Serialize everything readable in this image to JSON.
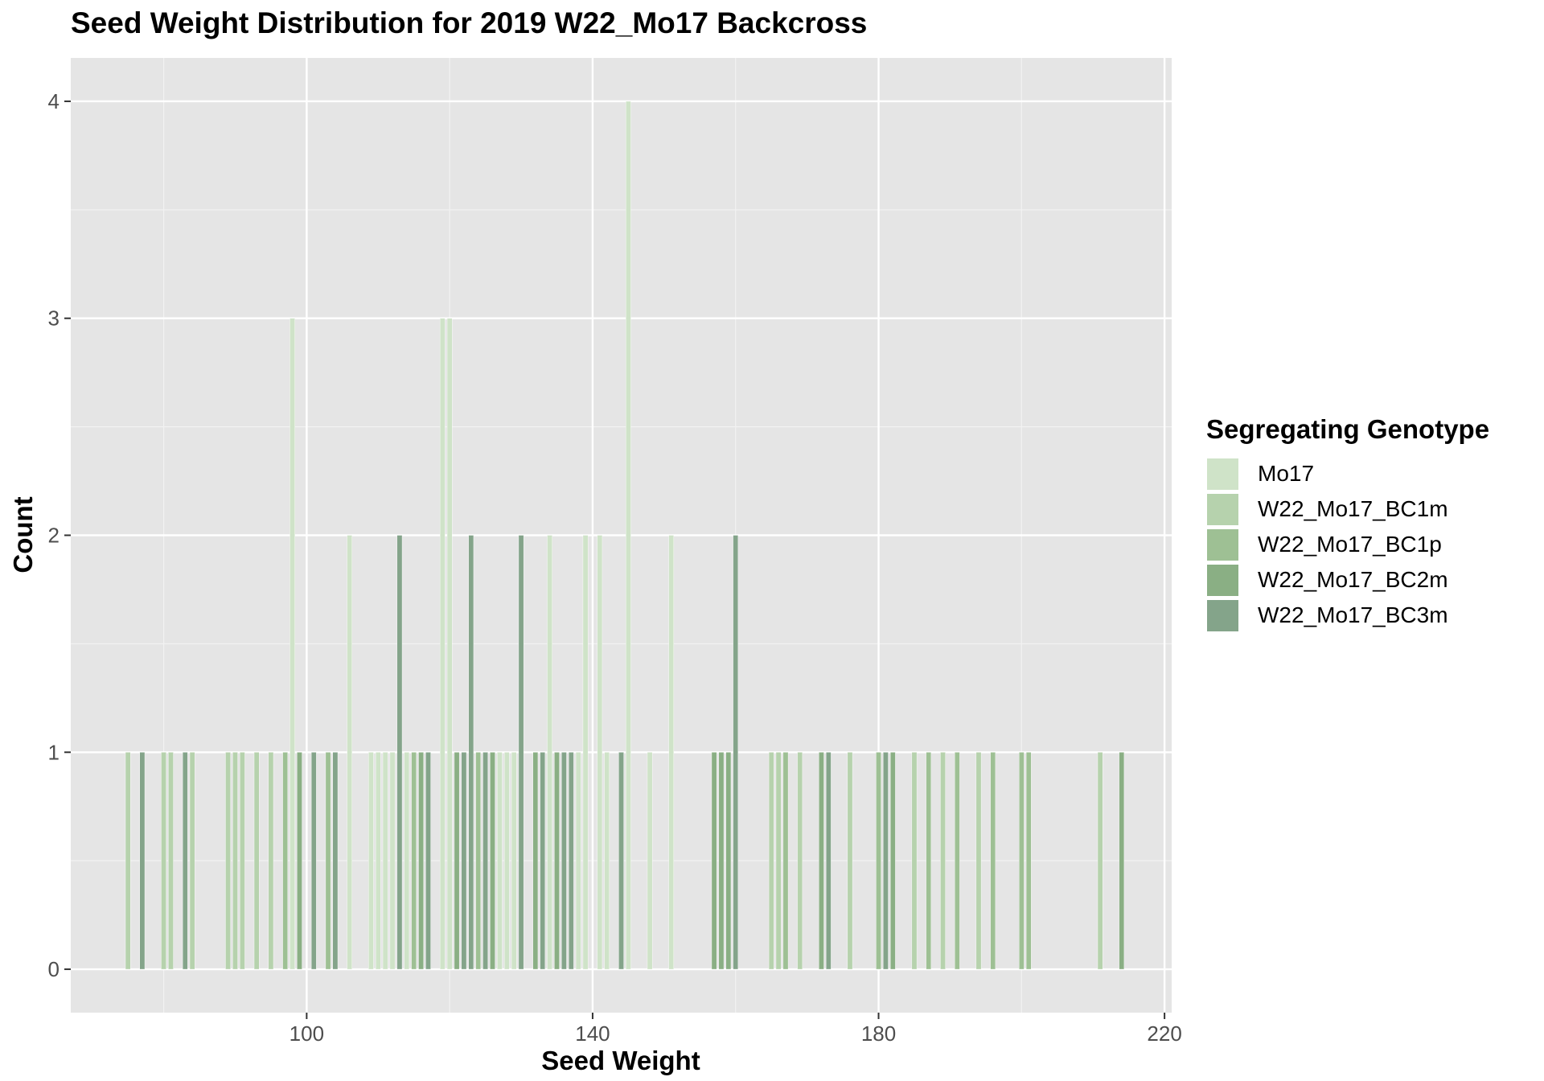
{
  "chart_data": {
    "type": "histogram",
    "title": "Seed Weight Distribution for 2019 W22_Mo17 Backcross",
    "xlabel": "Seed Weight",
    "ylabel": "Count",
    "xlim": [
      67,
      221
    ],
    "ylim": [
      -0.2,
      4.2
    ],
    "x_ticks": [
      100,
      140,
      180,
      220
    ],
    "y_ticks": [
      0,
      1,
      2,
      3,
      4
    ],
    "bar_width": 0.7,
    "legend_title": "Segregating Genotype",
    "legend_position": "right",
    "series": [
      {
        "name": "Mo17",
        "color": "#cfe3c8",
        "bars": [
          [
            98,
            3
          ],
          [
            106,
            2
          ],
          [
            109,
            1
          ],
          [
            110,
            1
          ],
          [
            111,
            1
          ],
          [
            112,
            1
          ],
          [
            114,
            1
          ],
          [
            119,
            3
          ],
          [
            120,
            3
          ],
          [
            127,
            1
          ],
          [
            128,
            1
          ],
          [
            129,
            1
          ],
          [
            134,
            2
          ],
          [
            138,
            1
          ],
          [
            139,
            2
          ],
          [
            141,
            2
          ],
          [
            142,
            1
          ],
          [
            145,
            4
          ],
          [
            148,
            1
          ],
          [
            151,
            2
          ]
        ]
      },
      {
        "name": "W22_Mo17_BC1m",
        "color": "#b6d2ad",
        "bars": [
          [
            75,
            1
          ],
          [
            80,
            1
          ],
          [
            81,
            1
          ],
          [
            84,
            1
          ],
          [
            89,
            1
          ],
          [
            90,
            1
          ],
          [
            91,
            1
          ],
          [
            93,
            1
          ],
          [
            95,
            1
          ],
          [
            165,
            1
          ],
          [
            166,
            1
          ],
          [
            169,
            1
          ],
          [
            176,
            1
          ],
          [
            185,
            1
          ],
          [
            189,
            1
          ],
          [
            194,
            1
          ],
          [
            211,
            1
          ]
        ]
      },
      {
        "name": "W22_Mo17_BC1p",
        "color": "#9ec094",
        "bars": [
          [
            97,
            1
          ],
          [
            103,
            1
          ],
          [
            115,
            1
          ],
          [
            124,
            1
          ],
          [
            167,
            1
          ],
          [
            180,
            1
          ],
          [
            187,
            1
          ],
          [
            191,
            1
          ],
          [
            196,
            1
          ],
          [
            200,
            1
          ],
          [
            201,
            1
          ]
        ]
      },
      {
        "name": "W22_Mo17_BC2m",
        "color": "#8aaf84",
        "bars": [
          [
            99,
            1
          ],
          [
            116,
            1
          ],
          [
            121,
            1
          ],
          [
            126,
            1
          ],
          [
            132,
            1
          ],
          [
            135,
            1
          ],
          [
            157,
            1
          ],
          [
            158,
            1
          ],
          [
            159,
            1
          ],
          [
            172,
            1
          ],
          [
            182,
            1
          ],
          [
            214,
            1
          ]
        ]
      },
      {
        "name": "W22_Mo17_BC3m",
        "color": "#84a48a",
        "bars": [
          [
            77,
            1
          ],
          [
            83,
            1
          ],
          [
            101,
            1
          ],
          [
            104,
            1
          ],
          [
            113,
            2
          ],
          [
            117,
            1
          ],
          [
            122,
            1
          ],
          [
            123,
            2
          ],
          [
            125,
            1
          ],
          [
            130,
            2
          ],
          [
            133,
            1
          ],
          [
            136,
            1
          ],
          [
            137,
            1
          ],
          [
            144,
            1
          ],
          [
            160,
            2
          ],
          [
            173,
            1
          ],
          [
            181,
            1
          ]
        ]
      }
    ]
  }
}
